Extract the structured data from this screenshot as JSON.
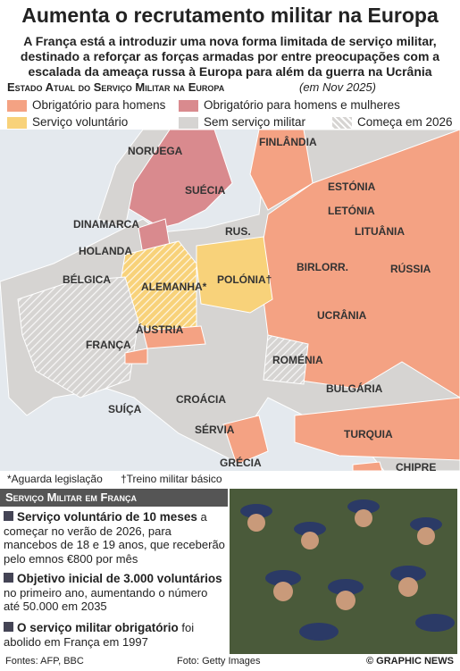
{
  "header": {
    "title": "Aumenta o recrutamento militar na Europa",
    "subtitle": "A França está a introduzir uma nova forma limitada de serviço militar, destinado a reforçar as forças armadas por entre preocupações com a escalada da ameaça russa à Europa para além da guerra na Ucrânia"
  },
  "legend": {
    "heading": "Estado Atual do Serviço Militar na Europa",
    "date": "(em Nov 2025)",
    "items": [
      {
        "label": "Obrigatório para homens",
        "color": "#f4a283"
      },
      {
        "label": "Obrigatório para homens e mulheres",
        "color": "#d98a8e"
      },
      {
        "label": "Serviço voluntário",
        "color": "#f8d27a"
      },
      {
        "label": "Sem serviço militar",
        "color": "#d6d4d2"
      },
      {
        "label": "Começa em 2026",
        "color": "#d6d4d2"
      }
    ]
  },
  "map": {
    "labels": [
      "FINLÂNDIA",
      "NORUEGA",
      "SUÉCIA",
      "ESTÓNIA",
      "LETÓNIA",
      "DINAMARCA",
      "LITUÂNIA",
      "RUS.",
      "HOLANDA",
      "BIRLORR.",
      "RÚSSIA",
      "BÉLGICA",
      "ALEMANHA*",
      "POLÓNIA†",
      "UCRÂNIA",
      "ÁUSTRIA",
      "FRANÇA",
      "ROMÉNIA",
      "BULGÁRIA",
      "CROÁCIA",
      "SUÍÇA",
      "SÉRVIA",
      "TURQUIA",
      "GRÉCIA",
      "CHIPRE"
    ]
  },
  "footnotes": [
    "*Aguarda legislação",
    "†Treino militar básico"
  ],
  "box": {
    "heading": "Serviço Militar em França",
    "items": [
      {
        "bold": "Serviço voluntário de 10 meses",
        "text": "a começar no verão de 2026, para mancebos de 18 e 19 anos, que receberão pelo emnos €800 por mês"
      },
      {
        "bold": "Objetivo inicial de 3.000 voluntários",
        "text": "no primeiro ano, aumentando o número até 50.000 em 2035"
      },
      {
        "bold": "O serviço militar obrigatório",
        "text": "foi abolido em França em 1997"
      }
    ]
  },
  "footer": {
    "sources": "Fontes: AFP, BBC",
    "photo": "Foto: Getty Images",
    "credit": "© GRAPHIC NEWS"
  }
}
